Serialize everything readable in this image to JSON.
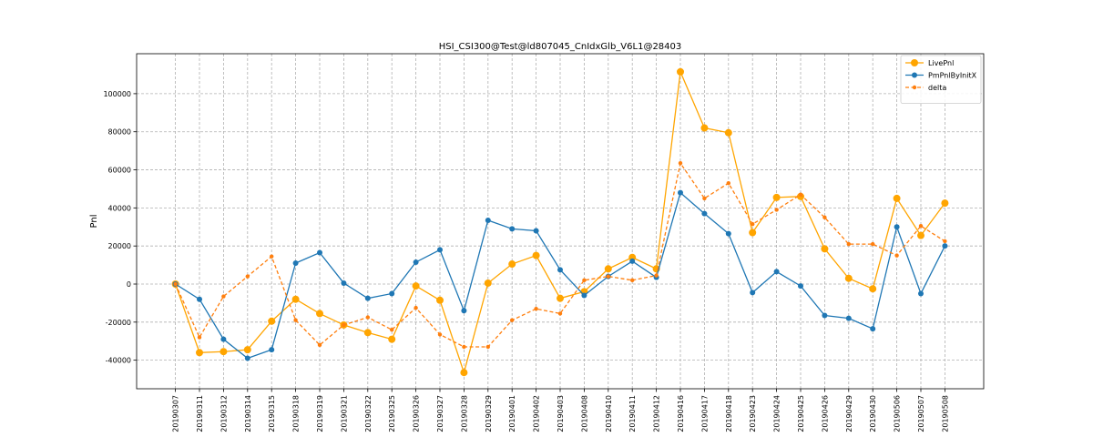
{
  "chart_data": {
    "type": "line",
    "title": "HSI_CSI300@Test@ld807045_CnIdxGlb_V6L1@28403",
    "xlabel": "",
    "ylabel": "Pnl",
    "ylim": [
      -55000,
      121000
    ],
    "yticks": [
      -40000,
      -20000,
      0,
      20000,
      40000,
      60000,
      80000,
      100000
    ],
    "grid": true,
    "legend_position": "top-right",
    "categories": [
      "20190307",
      "20190311",
      "20190312",
      "20190314",
      "20190315",
      "20190318",
      "20190319",
      "20190321",
      "20190322",
      "20190325",
      "20190326",
      "20190327",
      "20190328",
      "20190329",
      "20190401",
      "20190402",
      "20190403",
      "20190408",
      "20190410",
      "20190411",
      "20190412",
      "20190416",
      "20190417",
      "20190418",
      "20190423",
      "20190424",
      "20190425",
      "20190426",
      "20190429",
      "20190430",
      "20190506",
      "20190507",
      "20190508"
    ],
    "series": [
      {
        "name": "LivePnl",
        "color": "#ffa500",
        "style": "solid",
        "marker": "large-circle",
        "values": [
          0,
          -36000,
          -35500,
          -34500,
          -19500,
          -8000,
          -15500,
          -21500,
          -25500,
          -29000,
          -1000,
          -8500,
          -46500,
          500,
          10500,
          15000,
          -7500,
          -4000,
          8000,
          14000,
          8000,
          111500,
          82000,
          79500,
          27000,
          45500,
          46000,
          18500,
          3000,
          -2500,
          45000,
          25500,
          42500
        ]
      },
      {
        "name": "PmPnlByInitX",
        "color": "#1f77b4",
        "style": "solid",
        "marker": "circle",
        "values": [
          0,
          -8000,
          -29000,
          -39000,
          -34500,
          11000,
          16500,
          500,
          -7500,
          -5000,
          11500,
          18000,
          -14000,
          33500,
          29000,
          28000,
          7500,
          -6000,
          4000,
          12000,
          3500,
          48000,
          37000,
          26500,
          -4500,
          6500,
          -1000,
          -16500,
          -18000,
          -23500,
          30000,
          -5000,
          20000
        ]
      },
      {
        "name": "delta",
        "color": "#ff7f0e",
        "style": "dashed",
        "marker": "small-circle",
        "values": [
          0,
          -28000,
          -6500,
          4000,
          14500,
          -19000,
          -32000,
          -21500,
          -17500,
          -24000,
          -12500,
          -26500,
          -33000,
          -33000,
          -19000,
          -13000,
          -15500,
          2000,
          4000,
          2000,
          4500,
          63500,
          45000,
          53000,
          31500,
          39000,
          47000,
          35000,
          21000,
          21000,
          15000,
          30500,
          22500
        ]
      }
    ]
  }
}
